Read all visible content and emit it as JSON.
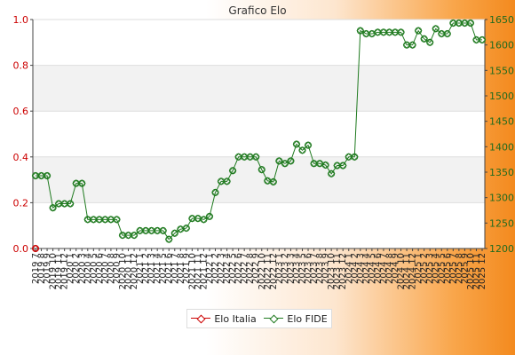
{
  "chart_data": {
    "type": "line",
    "title": "Grafico Elo",
    "left_axis": {
      "ylim": [
        0.0,
        1.0
      ],
      "ticks": [
        "0.0",
        "0.2",
        "0.4",
        "0.6",
        "0.8",
        "1.0"
      ]
    },
    "right_axis": {
      "ylim": [
        1200,
        1650
      ],
      "ticks": [
        "1200",
        "1250",
        "1300",
        "1350",
        "1400",
        "1450",
        "1500",
        "1550",
        "1600",
        "1650"
      ]
    },
    "x_labels": [
      "2019 7",
      "2019 8",
      "2019 9",
      "2019 10",
      "2019 11",
      "2019 12",
      "2020 1",
      "2020 2",
      "2020 3",
      "2020 4",
      "2020 5",
      "2020 6",
      "2020 7",
      "2020 8",
      "2020 9",
      "2020 10",
      "2020 11",
      "2020 12",
      "2021 1",
      "2021 2",
      "2021 3",
      "2021 4",
      "2021 5",
      "2021 6",
      "2021 7",
      "2021 8",
      "2021 9",
      "2021 10",
      "2021 11",
      "2021 12",
      "2022 1",
      "2022 2",
      "2022 3",
      "2022 4",
      "2022 5",
      "2022 6",
      "2022 7",
      "2022 8",
      "2022 9",
      "2022 10",
      "2022 11",
      "2022 12",
      "2023 1",
      "2023 2",
      "2023 3",
      "2023 4",
      "2023 5",
      "2023 6",
      "2023 7",
      "2023 8",
      "2023 9",
      "2023 10",
      "2023 11",
      "2023 12",
      "2024 1",
      "2024 2",
      "2024 3",
      "2024 4",
      "2024 5",
      "2024 6",
      "2024 7",
      "2024 8",
      "2024 9",
      "2024 10",
      "2024 11",
      "2024 12",
      "2025 1",
      "2025 2",
      "2025 3",
      "2025 4",
      "2025 5",
      "2025 6",
      "2025 7",
      "2025 8",
      "2025 9",
      "2025 10",
      "2025 11",
      "2025 12"
    ],
    "grid": true,
    "legend_position": "bottom",
    "series": [
      {
        "name": "Elo Italia",
        "axis": "left",
        "color": "#cc0000",
        "values": [
          0.0,
          null,
          null,
          null,
          null,
          null,
          null,
          null,
          null,
          null,
          null,
          null,
          null,
          null,
          null,
          null,
          null,
          null,
          null,
          null,
          null,
          null,
          null,
          null,
          null,
          null,
          null,
          null,
          null,
          null,
          null,
          null,
          null,
          null,
          null,
          null,
          null,
          null,
          null,
          null,
          null,
          null,
          null,
          null,
          null,
          null,
          null,
          null,
          null,
          null,
          null,
          null,
          null,
          null,
          null,
          null,
          null,
          null,
          null,
          null,
          null,
          null,
          null,
          null,
          null,
          null,
          null,
          null,
          null,
          null,
          null,
          null,
          null,
          null,
          null,
          null,
          null,
          null
        ]
      },
      {
        "name": "Elo FIDE",
        "axis": "right",
        "color": "#1f7a1f",
        "values": [
          1343,
          1343,
          1343,
          1280,
          1288,
          1288,
          1288,
          1328,
          1328,
          1257,
          1257,
          1257,
          1257,
          1257,
          1257,
          1226,
          1226,
          1226,
          1235,
          1235,
          1235,
          1235,
          1235,
          1218,
          1230,
          1238,
          1240,
          1259,
          1259,
          1257,
          1263,
          1310,
          1332,
          1332,
          1353,
          1380,
          1380,
          1380,
          1380,
          1355,
          1333,
          1331,
          1372,
          1367,
          1372,
          1405,
          1393,
          1403,
          1367,
          1367,
          1364,
          1347,
          1363,
          1363,
          1380,
          1380,
          1628,
          1622,
          1622,
          1625,
          1625,
          1625,
          1625,
          1625,
          1600,
          1600,
          1628,
          1612,
          1605,
          1632,
          1622,
          1622,
          1643,
          1643,
          1643,
          1643,
          1610,
          1610
        ]
      }
    ]
  }
}
